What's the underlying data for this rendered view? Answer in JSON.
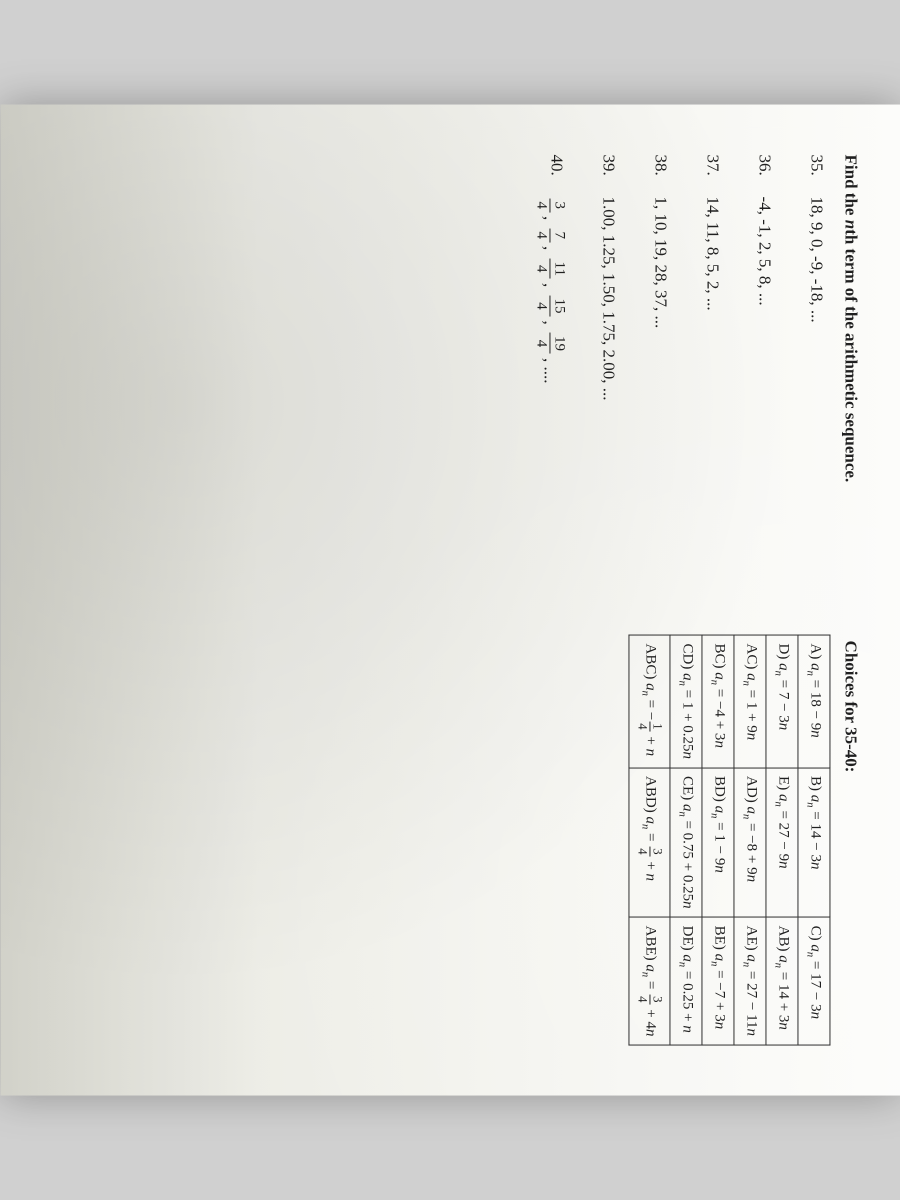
{
  "heading": "Find the nth term of the arithmetic sequence.",
  "choicesHeading": "Choices for 35-40:",
  "problems": [
    {
      "num": "35.",
      "seq": "18, 9, 0, -9, -18, ..."
    },
    {
      "num": "36.",
      "seq": "-4, -1, 2, 5, 8, ..."
    },
    {
      "num": "37.",
      "seq": "14, 11, 8, 5, 2, ..."
    },
    {
      "num": "38.",
      "seq": "1, 10, 19, 28, 37, ..."
    },
    {
      "num": "39.",
      "seq": "1.00, 1.25, 1.50, 1.75, 2.00, ..."
    }
  ],
  "problem40": {
    "num": "40.",
    "fractions": [
      {
        "n": "3",
        "d": "4"
      },
      {
        "n": "7",
        "d": "4"
      },
      {
        "n": "11",
        "d": "4"
      },
      {
        "n": "15",
        "d": "4"
      },
      {
        "n": "19",
        "d": "4"
      }
    ]
  },
  "choices": {
    "rows": [
      [
        {
          "label": "A)",
          "expr": "18 − 9n"
        },
        {
          "label": "B)",
          "expr": "14 − 3n"
        },
        {
          "label": "C)",
          "expr": "17 − 3n"
        }
      ],
      [
        {
          "label": "D)",
          "expr": "7 − 3n"
        },
        {
          "label": "E)",
          "expr": "27 − 9n"
        },
        {
          "label": "AB)",
          "expr": "14 + 3n"
        }
      ],
      [
        {
          "label": "AC)",
          "expr": "1 + 9n"
        },
        {
          "label": "AD)",
          "expr": "−8 + 9n"
        },
        {
          "label": "AE)",
          "expr": "27 − 11n"
        }
      ],
      [
        {
          "label": "BC)",
          "expr": "−4 + 3n"
        },
        {
          "label": "BD)",
          "expr": "1 − 9n"
        },
        {
          "label": "BE)",
          "expr": "−7 + 3n"
        }
      ],
      [
        {
          "label": "CD)",
          "expr": "1 + 0.25n"
        },
        {
          "label": "CE)",
          "expr": "0.75 + 0.25n"
        },
        {
          "label": "DE)",
          "expr": "0.25 + n"
        }
      ]
    ],
    "fracRow": [
      {
        "label": "ABC)",
        "neg": "−",
        "fn": "1",
        "fd": "4",
        "tail": "+ n"
      },
      {
        "label": "ABD)",
        "neg": "",
        "fn": "3",
        "fd": "4",
        "tail": "+ n"
      },
      {
        "label": "ABE)",
        "neg": "",
        "fn": "3",
        "fd": "4",
        "tail": "+ 4n"
      }
    ]
  },
  "style": {
    "pageBg": "#f8f8f4",
    "textColor": "#1a1a1a",
    "borderColor": "#2a2a2a"
  }
}
